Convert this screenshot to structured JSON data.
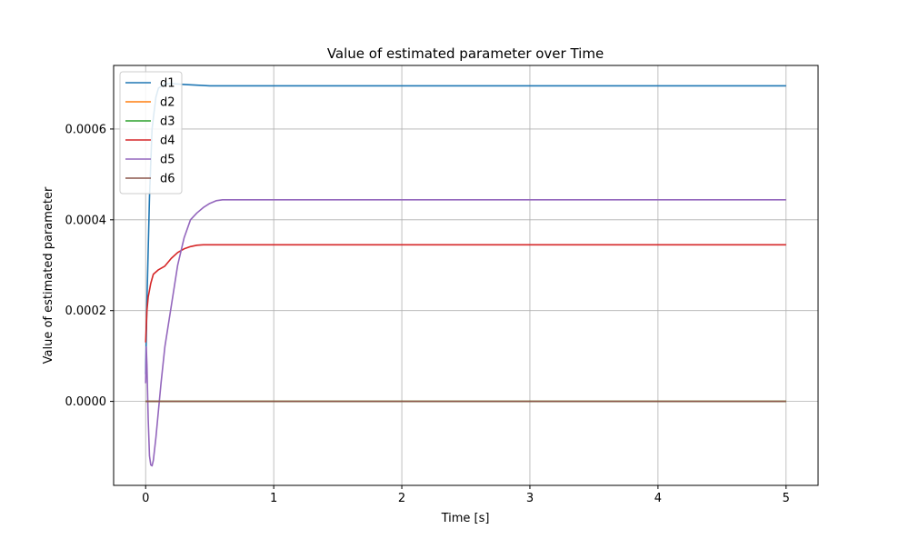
{
  "chart_data": {
    "type": "line",
    "title": "Value of estimated parameter over Time",
    "xlabel": "Time [s]",
    "ylabel": "Value of estimated parameter",
    "xlim": [
      -0.25,
      5.25
    ],
    "ylim": [
      -0.000185,
      0.00074
    ],
    "xticks": [
      0,
      1,
      2,
      3,
      4,
      5
    ],
    "xtick_labels": [
      "0",
      "1",
      "2",
      "3",
      "4",
      "5"
    ],
    "yticks": [
      0.0,
      0.0002,
      0.0004,
      0.0006
    ],
    "ytick_labels": [
      "0.0000",
      "0.0002",
      "0.0004",
      "0.0006"
    ],
    "grid": true,
    "legend_position": "upper-left",
    "series": [
      {
        "name": "d1",
        "color": "#1f77b4",
        "x": [
          0.0,
          0.01,
          0.03,
          0.05,
          0.08,
          0.1,
          0.15,
          0.2,
          0.3,
          0.5,
          1.0,
          2.0,
          3.0,
          4.0,
          5.0
        ],
        "y": [
          6e-05,
          0.00022,
          0.00045,
          0.0006,
          0.00067,
          0.00069,
          0.000699,
          0.0007,
          0.000698,
          0.000695,
          0.000695,
          0.000695,
          0.000695,
          0.000695,
          0.000695
        ]
      },
      {
        "name": "d2",
        "color": "#ff7f0e",
        "x": [
          0.0,
          5.0
        ],
        "y": [
          0.0,
          0.0
        ]
      },
      {
        "name": "d3",
        "color": "#2ca02c",
        "x": [
          0.0,
          5.0
        ],
        "y": [
          0.0,
          0.0
        ]
      },
      {
        "name": "d4",
        "color": "#d62728",
        "x": [
          0.0,
          0.01,
          0.02,
          0.04,
          0.06,
          0.08,
          0.1,
          0.15,
          0.2,
          0.25,
          0.3,
          0.35,
          0.4,
          0.45,
          0.5,
          1.0,
          2.0,
          3.0,
          4.0,
          5.0
        ],
        "y": [
          0.00013,
          0.0002,
          0.00023,
          0.00026,
          0.00028,
          0.000285,
          0.00029,
          0.000298,
          0.000315,
          0.000328,
          0.000336,
          0.000341,
          0.000344,
          0.000345,
          0.000345,
          0.000345,
          0.000345,
          0.000345,
          0.000345,
          0.000345
        ]
      },
      {
        "name": "d5",
        "color": "#9467bd",
        "x": [
          0.0,
          0.005,
          0.01,
          0.02,
          0.03,
          0.04,
          0.05,
          0.06,
          0.08,
          0.1,
          0.12,
          0.15,
          0.2,
          0.25,
          0.3,
          0.35,
          0.4,
          0.45,
          0.5,
          0.55,
          0.6,
          1.0,
          2.0,
          3.0,
          4.0,
          5.0
        ],
        "y": [
          4e-05,
          0.00012,
          8e-05,
          -4e-05,
          -0.00012,
          -0.00014,
          -0.000142,
          -0.00013,
          -8e-05,
          -2e-05,
          4e-05,
          0.00012,
          0.00021,
          0.0003,
          0.00036,
          0.0004,
          0.000415,
          0.000427,
          0.000436,
          0.000442,
          0.000444,
          0.000444,
          0.000444,
          0.000444,
          0.000444,
          0.000444
        ]
      },
      {
        "name": "d6",
        "color": "#8c564b",
        "x": [
          0.0,
          5.0
        ],
        "y": [
          0.0,
          0.0
        ]
      }
    ]
  }
}
